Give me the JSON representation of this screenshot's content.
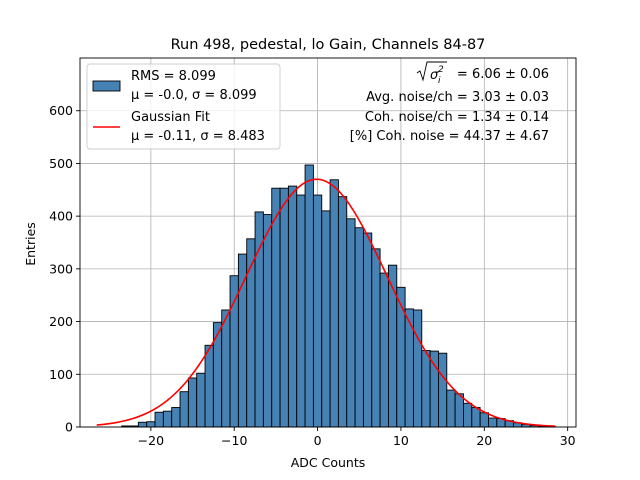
{
  "chart_data": {
    "type": "bar",
    "title": "Run 498, pedestal, lo Gain, Channels 84-87",
    "xlabel": "ADC Counts",
    "ylabel": "Entries",
    "xlim": [
      -28.5,
      31
    ],
    "ylim": [
      0,
      700
    ],
    "xticks": [
      -20,
      -10,
      0,
      10,
      20,
      30
    ],
    "yticks": [
      0,
      100,
      200,
      300,
      400,
      500,
      600
    ],
    "grid": true,
    "bin_width": 1,
    "histogram": {
      "name_line1": "RMS = 8.099",
      "name_line2": "μ = -0.0, σ = 8.099",
      "color": "#4682b4",
      "bins": [
        {
          "x": -23,
          "y": 2
        },
        {
          "x": -22,
          "y": 2
        },
        {
          "x": -21,
          "y": 9
        },
        {
          "x": -20,
          "y": 10
        },
        {
          "x": -19,
          "y": 28
        },
        {
          "x": -18,
          "y": 30
        },
        {
          "x": -17,
          "y": 37
        },
        {
          "x": -16,
          "y": 67
        },
        {
          "x": -15,
          "y": 93
        },
        {
          "x": -14,
          "y": 102
        },
        {
          "x": -13,
          "y": 155
        },
        {
          "x": -12,
          "y": 198
        },
        {
          "x": -11,
          "y": 222
        },
        {
          "x": -10,
          "y": 287
        },
        {
          "x": -9,
          "y": 328
        },
        {
          "x": -8,
          "y": 357
        },
        {
          "x": -7,
          "y": 408
        },
        {
          "x": -6,
          "y": 403
        },
        {
          "x": -5,
          "y": 453
        },
        {
          "x": -4,
          "y": 453
        },
        {
          "x": -3,
          "y": 457
        },
        {
          "x": -2,
          "y": 440
        },
        {
          "x": -1,
          "y": 497
        },
        {
          "x": 0,
          "y": 440
        },
        {
          "x": 1,
          "y": 410
        },
        {
          "x": 2,
          "y": 469
        },
        {
          "x": 3,
          "y": 437
        },
        {
          "x": 4,
          "y": 395
        },
        {
          "x": 5,
          "y": 378
        },
        {
          "x": 6,
          "y": 368
        },
        {
          "x": 7,
          "y": 338
        },
        {
          "x": 8,
          "y": 292
        },
        {
          "x": 9,
          "y": 307
        },
        {
          "x": 10,
          "y": 265
        },
        {
          "x": 11,
          "y": 224
        },
        {
          "x": 12,
          "y": 222
        },
        {
          "x": 13,
          "y": 145
        },
        {
          "x": 14,
          "y": 144
        },
        {
          "x": 15,
          "y": 140
        },
        {
          "x": 16,
          "y": 70
        },
        {
          "x": 17,
          "y": 63
        },
        {
          "x": 18,
          "y": 45
        },
        {
          "x": 19,
          "y": 37
        },
        {
          "x": 20,
          "y": 27
        },
        {
          "x": 21,
          "y": 17
        },
        {
          "x": 22,
          "y": 16
        },
        {
          "x": 23,
          "y": 12
        },
        {
          "x": 24,
          "y": 8
        },
        {
          "x": 25,
          "y": 5
        },
        {
          "x": 26,
          "y": 3
        },
        {
          "x": 27,
          "y": 2
        },
        {
          "x": 28,
          "y": 1
        }
      ]
    },
    "fit": {
      "name_line1": "Gaussian Fit",
      "name_line2": "μ = -0.11, σ = 8.483",
      "color": "#ff0000",
      "mu": -0.11,
      "sigma": 8.483,
      "amplitude": 470,
      "x_range": [
        -26.5,
        28.5
      ]
    },
    "annotations": [
      "= 6.06 ± 0.06",
      "Avg. noise/ch = 3.03 ± 0.03",
      "Coh. noise/ch = 1.34 ± 0.14",
      "[%] Coh. noise = 44.37 ± 4.67"
    ]
  }
}
